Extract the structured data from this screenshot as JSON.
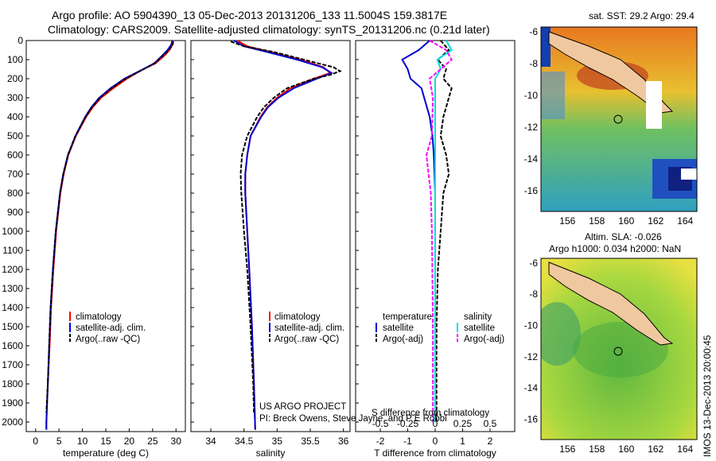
{
  "title_line1": "Argo profile: AO 5904390_13 05-Dec-2013 20131206_133 11.5004S 159.3817E",
  "title_line2": "Climatology: CARS2009. Satellite-adjusted climatology: synTS_20131206.nc (0.21d later)",
  "project_line1": "US ARGO PROJECT",
  "project_line2": "PI: Breck Owens, Steve Jayne, and P E Robbi",
  "s_diff_label": "S difference from climatology",
  "imos_label": "IMOS 13-Dec-2013 20:00:45",
  "colors": {
    "climatology": "#ff0000",
    "satellite": "#0000cc",
    "argo": "#000000",
    "sat_sal": "#00e0e0",
    "argo_sal": "#ff00ff"
  },
  "chart_data": [
    {
      "type": "line",
      "xlabel": "temperature (deg C)",
      "x_ticks": [
        "0",
        "5",
        "10",
        "15",
        "20",
        "25",
        "30"
      ],
      "y_ticks": [
        "0",
        "100",
        "200",
        "300",
        "400",
        "500",
        "600",
        "700",
        "800",
        "900",
        "1000",
        "1100",
        "1200",
        "1300",
        "1400",
        "1500",
        "1600",
        "1700",
        "1800",
        "1900",
        "2000"
      ],
      "xlim": [
        -2,
        32
      ],
      "ylim": [
        2050,
        0
      ],
      "legend": [
        "climatology",
        "satellite-adj. clim.",
        "Argo(..raw -QC)"
      ],
      "series": [
        {
          "name": "climatology",
          "depth": [
            0,
            20,
            50,
            80,
            120,
            150,
            200,
            250,
            300,
            350,
            400,
            500,
            600,
            700,
            800,
            1000,
            1200,
            1400,
            1600,
            1800,
            2000,
            2040
          ],
          "values": [
            29.4,
            29.3,
            28.6,
            27.5,
            25.6,
            23.0,
            19.5,
            16.6,
            14.0,
            12.2,
            10.8,
            8.6,
            7.0,
            6.0,
            5.3,
            4.4,
            3.8,
            3.3,
            3.0,
            2.6,
            2.3,
            2.3
          ]
        },
        {
          "name": "satellite-adj. clim.",
          "depth": [
            0,
            20,
            50,
            80,
            120,
            150,
            200,
            250,
            300,
            350,
            400,
            500,
            600,
            700,
            800,
            1000,
            1200,
            1400,
            1600,
            1800,
            2000,
            2040
          ],
          "values": [
            29.2,
            29.0,
            28.2,
            27.0,
            25.3,
            23.0,
            19.0,
            16.0,
            13.6,
            11.9,
            10.6,
            8.5,
            6.9,
            5.9,
            5.2,
            4.3,
            3.7,
            3.2,
            2.9,
            2.6,
            2.3,
            2.3
          ]
        },
        {
          "name": "Argo(..raw -QC)",
          "depth": [
            5,
            20,
            50,
            80,
            120,
            150,
            200,
            250,
            300,
            350,
            400,
            500,
            600,
            700,
            800,
            1000,
            1200,
            1400,
            1600,
            1800,
            1950
          ],
          "values": [
            29.4,
            29.3,
            28.5,
            27.2,
            25.4,
            23.1,
            19.2,
            16.2,
            13.8,
            12.0,
            10.7,
            8.5,
            6.9,
            5.9,
            5.2,
            4.3,
            3.7,
            3.2,
            2.9,
            2.6,
            2.3
          ]
        }
      ]
    },
    {
      "type": "line",
      "xlabel": "salinity",
      "x_ticks": [
        "34",
        "34.5",
        "35",
        "35.5",
        "36"
      ],
      "xlim": [
        33.7,
        36.1
      ],
      "ylim": [
        2050,
        0
      ],
      "legend": [
        "climatology",
        "satellite-adj. clim.",
        "Argo(..raw -QC)"
      ],
      "series": [
        {
          "name": "climatology",
          "depth": [
            0,
            30,
            60,
            100,
            140,
            170,
            200,
            250,
            300,
            350,
            400,
            500,
            600,
            700,
            800,
            1000,
            1200,
            1500,
            1800,
            2040
          ],
          "values": [
            34.4,
            34.55,
            34.9,
            35.35,
            35.7,
            35.8,
            35.55,
            35.2,
            35.0,
            34.85,
            34.75,
            34.6,
            34.55,
            34.52,
            34.52,
            34.55,
            34.58,
            34.62,
            34.65,
            34.67
          ]
        },
        {
          "name": "satellite-adj. clim.",
          "depth": [
            0,
            30,
            60,
            100,
            140,
            170,
            200,
            250,
            300,
            350,
            400,
            500,
            600,
            700,
            800,
            1000,
            1200,
            1500,
            1800,
            2040
          ],
          "values": [
            34.35,
            34.5,
            34.85,
            35.3,
            35.68,
            35.82,
            35.6,
            35.25,
            35.02,
            34.86,
            34.76,
            34.6,
            34.55,
            34.52,
            34.52,
            34.55,
            34.58,
            34.62,
            34.65,
            34.67
          ]
        },
        {
          "name": "Argo(..raw -QC)",
          "depth": [
            5,
            30,
            60,
            100,
            140,
            160,
            180,
            200,
            250,
            300,
            350,
            400,
            500,
            600,
            700,
            800,
            1000,
            1200,
            1500,
            1800,
            1950
          ],
          "values": [
            34.3,
            34.5,
            34.95,
            35.4,
            35.85,
            35.95,
            35.8,
            35.55,
            35.15,
            34.95,
            34.8,
            34.7,
            34.55,
            34.47,
            34.45,
            34.46,
            34.5,
            34.55,
            34.6,
            34.64,
            34.65
          ]
        }
      ]
    },
    {
      "type": "line",
      "xlabel": "T difference from climatology",
      "x_ticks": [
        "-2",
        "-1",
        "0",
        "1",
        "2"
      ],
      "x2_ticks": [
        "-0.5",
        "-0.25",
        "0",
        "0.25",
        "0.5"
      ],
      "x2label": "S difference from climatology",
      "xlim": [
        -2.9,
        2.9
      ],
      "ylim": [
        2050,
        0
      ],
      "legend_left_title": "temperature",
      "legend_right_title": "salinity",
      "legend": [
        "satellite",
        "Argo(-adj)",
        "satellite",
        "Argo(-adj)"
      ],
      "series": [
        {
          "name": "satellite",
          "depth": [
            0,
            50,
            100,
            150,
            200,
            250,
            300,
            400,
            500,
            600,
            800,
            1000,
            1500,
            2000
          ],
          "values": [
            -0.2,
            -0.6,
            -1.2,
            -1.0,
            -0.9,
            -0.5,
            -0.4,
            -0.2,
            -0.1,
            -0.05,
            0,
            0,
            0,
            0
          ]
        },
        {
          "name": "Argo(-adj)",
          "depth": [
            0,
            50,
            100,
            150,
            200,
            250,
            300,
            400,
            500,
            600,
            700,
            800,
            1000,
            1200,
            1500,
            1800,
            2000
          ],
          "values": [
            0.2,
            0.5,
            0.1,
            0.4,
            0.3,
            0.6,
            0.5,
            0.3,
            0.2,
            0.4,
            0.5,
            0.3,
            0.2,
            0.1,
            0.05,
            0.05,
            0.05
          ]
        },
        {
          "name": "satellite S",
          "depth": [
            0,
            50,
            100,
            150,
            200,
            300,
            400,
            500,
            700,
            1000,
            1500,
            2000
          ],
          "values": [
            0.1,
            0.15,
            0.02,
            0.05,
            0.0,
            0.0,
            0.0,
            0.0,
            0.0,
            0.0,
            0.0,
            0.0
          ]
        },
        {
          "name": "Argo(-adj) S",
          "depth": [
            0,
            50,
            100,
            150,
            200,
            300,
            500,
            600,
            700,
            800,
            1000,
            1500,
            2000
          ],
          "values": [
            -0.05,
            0.1,
            0.15,
            0.05,
            -0.05,
            -0.02,
            -0.03,
            -0.08,
            -0.06,
            -0.04,
            -0.03,
            -0.02,
            -0.02
          ]
        }
      ]
    },
    {
      "type": "heatmap",
      "title": "sat. SST: 29.2  Argo: 29.4",
      "x_ticks": [
        "156",
        "158",
        "160",
        "162",
        "164"
      ],
      "y_ticks": [
        "-6",
        "-8",
        "-10",
        "-12",
        "-14",
        "-16"
      ]
    },
    {
      "type": "heatmap",
      "title_line1": "Altim. SLA: -0.026",
      "title_line2": "Argo h1000: 0.034  h2000: NaN",
      "x_ticks": [
        "156",
        "158",
        "160",
        "162",
        "164"
      ],
      "y_ticks": [
        "-6",
        "-8",
        "-10",
        "-12",
        "-14",
        "-16"
      ]
    }
  ]
}
